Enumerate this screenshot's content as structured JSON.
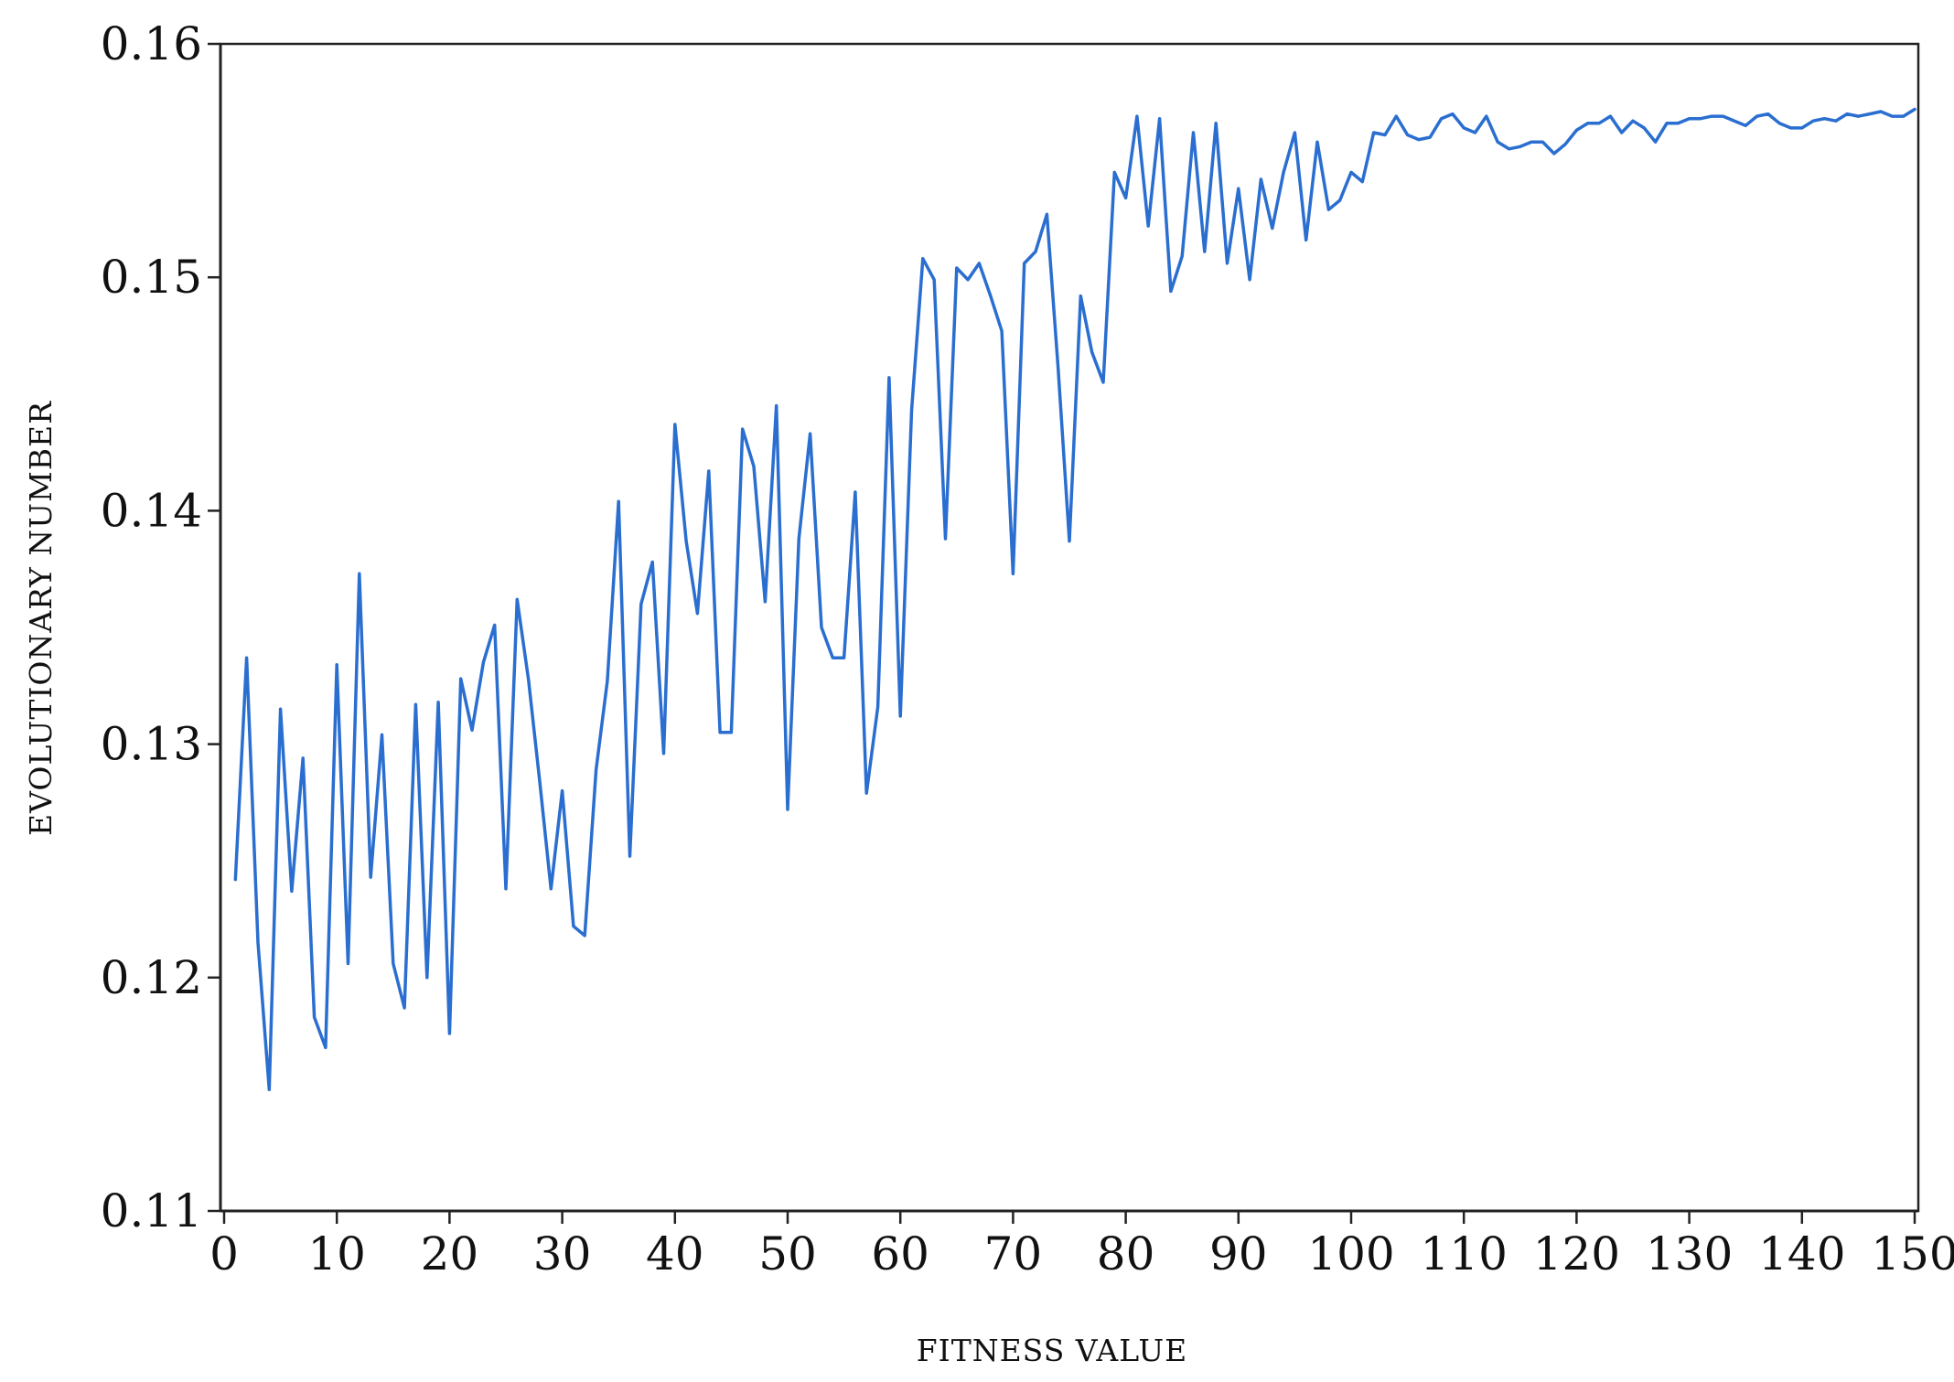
{
  "chart_data": {
    "type": "line",
    "xlabel": "FITNESS VALUE",
    "ylabel": "EVOLUTIONARY NUMBER",
    "xlim": [
      0,
      150
    ],
    "ylim": [
      0.11,
      0.16
    ],
    "xticks": [
      0,
      10,
      20,
      30,
      40,
      50,
      60,
      70,
      80,
      90,
      100,
      110,
      120,
      130,
      140,
      150
    ],
    "yticks": [
      0.11,
      0.12,
      0.13,
      0.14,
      0.15,
      0.16
    ],
    "ytick_labels": [
      "0.11",
      "0.12",
      "0.13",
      "0.14",
      "0.15",
      "0.16"
    ],
    "grid": false,
    "line_color": "#2a6ed0",
    "series": [
      {
        "x": [
          1,
          2,
          3,
          4,
          5,
          6,
          7,
          8,
          9,
          10,
          11,
          12,
          13,
          14,
          15,
          16,
          17,
          18,
          19,
          20,
          21,
          22,
          23,
          24,
          25,
          26,
          27,
          28,
          29,
          30,
          31,
          32,
          33,
          34,
          35,
          36,
          37,
          38,
          39,
          40,
          41,
          42,
          43,
          44,
          45,
          46,
          47,
          48,
          49,
          50,
          51,
          52,
          53,
          54,
          55,
          56,
          57,
          58,
          59,
          60,
          61,
          62,
          63,
          64,
          65,
          66,
          67,
          68,
          69,
          70,
          71,
          72,
          73,
          74,
          75,
          76,
          77,
          78,
          79,
          80,
          81,
          82,
          83,
          84,
          85,
          86,
          87,
          88,
          89,
          90,
          91,
          92,
          93,
          94,
          95,
          96,
          97,
          98,
          99,
          100,
          101,
          102,
          103,
          104,
          105,
          106,
          107,
          108,
          109,
          110,
          111,
          112,
          113,
          114,
          115,
          116,
          117,
          118,
          119,
          120,
          121,
          122,
          123,
          124,
          125,
          126,
          127,
          128,
          129,
          130,
          131,
          132,
          133,
          134,
          135,
          136,
          137,
          138,
          139,
          140,
          141,
          142,
          143,
          144,
          145,
          146,
          147,
          148,
          149,
          150
        ],
        "y": [
          0.1242,
          0.1337,
          0.1215,
          0.1152,
          0.1315,
          0.1237,
          0.1294,
          0.1183,
          0.117,
          0.1334,
          0.1206,
          0.1373,
          0.1243,
          0.1304,
          0.1206,
          0.1187,
          0.1317,
          0.12,
          0.1318,
          0.1176,
          0.1328,
          0.1306,
          0.1335,
          0.1351,
          0.1238,
          0.1362,
          0.1328,
          0.1284,
          0.1238,
          0.128,
          0.1222,
          0.1218,
          0.1289,
          0.1327,
          0.1404,
          0.1252,
          0.136,
          0.1378,
          0.1296,
          0.1437,
          0.1387,
          0.1356,
          0.1417,
          0.1305,
          0.1305,
          0.1435,
          0.1419,
          0.1361,
          0.1445,
          0.1272,
          0.1388,
          0.1433,
          0.135,
          0.1337,
          0.1337,
          0.1408,
          0.1279,
          0.1316,
          0.1457,
          0.1312,
          0.1443,
          0.1508,
          0.1499,
          0.1388,
          0.1504,
          0.1499,
          0.1506,
          0.1492,
          0.1477,
          0.1373,
          0.1506,
          0.1511,
          0.1527,
          0.1461,
          0.1387,
          0.1492,
          0.1468,
          0.1455,
          0.1545,
          0.1534,
          0.1569,
          0.1522,
          0.1568,
          0.1494,
          0.1509,
          0.1562,
          0.1511,
          0.1566,
          0.1506,
          0.1538,
          0.1499,
          0.1542,
          0.1521,
          0.1545,
          0.1562,
          0.1516,
          0.1558,
          0.1529,
          0.1533,
          0.1545,
          0.1541,
          0.1562,
          0.1561,
          0.1569,
          0.1561,
          0.1559,
          0.156,
          0.1568,
          0.157,
          0.1564,
          0.1562,
          0.1569,
          0.1558,
          0.1555,
          0.1556,
          0.1558,
          0.1558,
          0.1553,
          0.1557,
          0.1563,
          0.1566,
          0.1566,
          0.1569,
          0.1562,
          0.1567,
          0.1564,
          0.1558,
          0.1566,
          0.1566,
          0.1568,
          0.1568,
          0.1569,
          0.1569,
          0.1567,
          0.1565,
          0.1569,
          0.157,
          0.1566,
          0.1564,
          0.1564,
          0.1567,
          0.1568,
          0.1567,
          0.157,
          0.1569,
          0.157,
          0.1571,
          0.1569,
          0.1569,
          0.1572
        ]
      }
    ]
  }
}
